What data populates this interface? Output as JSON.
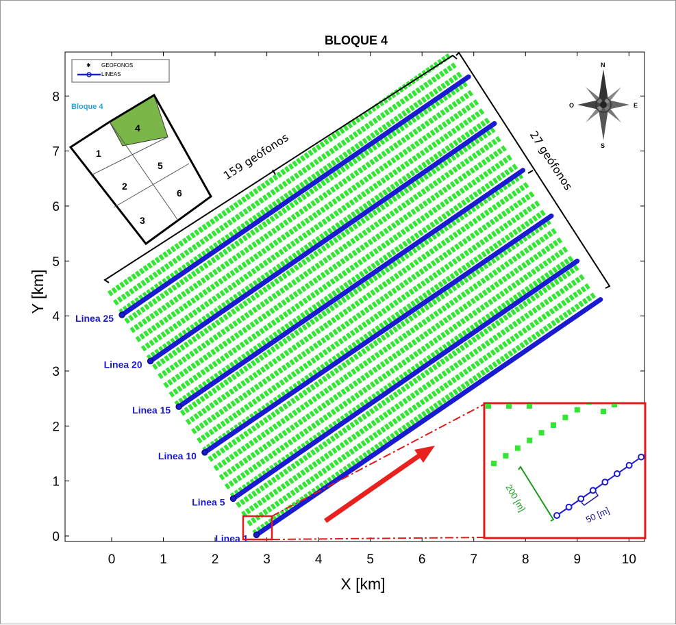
{
  "chart_data": {
    "type": "scatter",
    "title": "BLOQUE 4",
    "xlabel": "X [km]",
    "ylabel": "Y [km]",
    "xlim": [
      -0.9,
      10.3
    ],
    "ylim": [
      -0.1,
      8.8
    ],
    "xticks": [
      0,
      1,
      2,
      3,
      4,
      5,
      6,
      7,
      8,
      9,
      10
    ],
    "yticks": [
      0,
      1,
      2,
      3,
      4,
      5,
      6,
      7,
      8
    ],
    "grid": false,
    "legend": {
      "placement": "top-left",
      "entries": [
        {
          "name": "GEOFONOS",
          "color": "#33e633",
          "marker": "star"
        },
        {
          "name": "LINEAS",
          "color": "#1a1ad0",
          "marker": "circle-line"
        }
      ]
    },
    "series": [
      {
        "name": "GEOFONOS",
        "color": "#33e633",
        "line_count": 27,
        "first_line": {
          "start": [
            2.75,
            0.05
          ],
          "end": [
            9.35,
            4.4
          ]
        },
        "last_line": {
          "start": [
            -0.05,
            4.4
          ],
          "end": [
            6.55,
            8.75
          ]
        }
      },
      {
        "name": "LINEAS",
        "color": "#1a1ad0",
        "lines": [
          {
            "label": "Linea 1",
            "start": [
              2.8,
              0.02
            ],
            "end": [
              9.45,
              4.3
            ]
          },
          {
            "label": "Linea 5",
            "start": [
              2.35,
              0.68
            ],
            "end": [
              9.0,
              5.0
            ]
          },
          {
            "label": "Linea 10",
            "start": [
              1.8,
              1.52
            ],
            "end": [
              8.5,
              5.82
            ]
          },
          {
            "label": "Linea 15",
            "start": [
              1.3,
              2.35
            ],
            "end": [
              7.95,
              6.65
            ]
          },
          {
            "label": "Linea 20",
            "start": [
              0.75,
              3.18
            ],
            "end": [
              7.4,
              7.5
            ]
          },
          {
            "label": "Linea 25",
            "start": [
              0.2,
              4.02
            ],
            "end": [
              6.9,
              8.35
            ]
          }
        ]
      }
    ],
    "annotations": {
      "brace_top": "159 geófonos",
      "brace_right": "27 geófonos",
      "inset_green": "200 [m]",
      "inset_blue": "50 [m]"
    },
    "block_map": {
      "title": "Bloque 4",
      "cells": [
        "1",
        "2",
        "3",
        "4",
        "5",
        "6"
      ],
      "highlight": "4",
      "highlight_color": "#7ab648"
    },
    "compass": {
      "n": "N",
      "s": "S",
      "e": "E",
      "w": "O"
    },
    "colors": {
      "arrow": "#e8201e",
      "inset_border": "#e01a1a"
    }
  }
}
